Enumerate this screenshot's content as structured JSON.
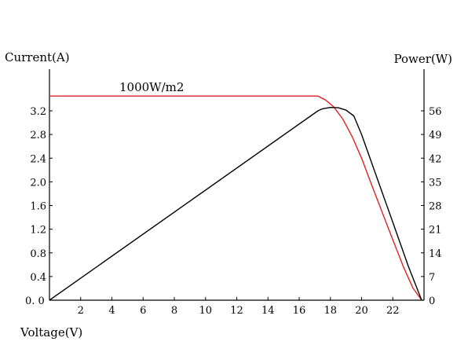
{
  "chart_data": {
    "type": "line",
    "x_axis": {
      "label": "Voltage(V)",
      "range": [
        0,
        24
      ],
      "ticks": [
        0,
        2,
        4,
        6,
        8,
        10,
        12,
        14,
        16,
        18,
        20,
        22
      ],
      "origin_label": "0. 0"
    },
    "y_axis_left": {
      "label": "Current(A)",
      "range": [
        0,
        4.0
      ],
      "ticks": [
        0.4,
        0.8,
        1.2,
        1.6,
        2.0,
        2.4,
        2.8,
        3.2
      ],
      "tick_labels": [
        "0.4",
        "0.8",
        "1.2",
        "1.6",
        "2.0",
        "2.4",
        "2.8",
        "3.2"
      ]
    },
    "y_axis_right": {
      "label": "Power(W)",
      "range": [
        0,
        70
      ],
      "ticks": [
        0,
        7,
        14,
        21,
        28,
        35,
        42,
        49,
        56
      ],
      "tick_labels": [
        "0",
        "7",
        "14",
        "21",
        "28",
        "35",
        "42",
        "49",
        "56"
      ]
    },
    "annotation": "1000W/m2",
    "grid": false,
    "series": [
      {
        "axis": "left",
        "color": "#e02020",
        "points": [
          [
            0,
            3.45
          ],
          [
            17.2,
            3.45
          ],
          [
            17.7,
            3.38
          ],
          [
            18.2,
            3.27
          ],
          [
            18.8,
            3.06
          ],
          [
            19.4,
            2.76
          ],
          [
            20,
            2.4
          ],
          [
            20.6,
            1.98
          ],
          [
            21.3,
            1.5
          ],
          [
            22,
            1.02
          ],
          [
            22.7,
            0.55
          ],
          [
            23.3,
            0.2
          ],
          [
            23.85,
            0
          ]
        ]
      },
      {
        "axis": "right",
        "color": "#000000",
        "points": [
          [
            0,
            0
          ],
          [
            17.2,
            56
          ],
          [
            17.5,
            56.6
          ],
          [
            18,
            57
          ],
          [
            18.5,
            56.9
          ],
          [
            19,
            56.2
          ],
          [
            19.5,
            54.5
          ],
          [
            20,
            49
          ],
          [
            21,
            36
          ],
          [
            22,
            23
          ],
          [
            23,
            10
          ],
          [
            23.85,
            0
          ]
        ]
      }
    ]
  }
}
